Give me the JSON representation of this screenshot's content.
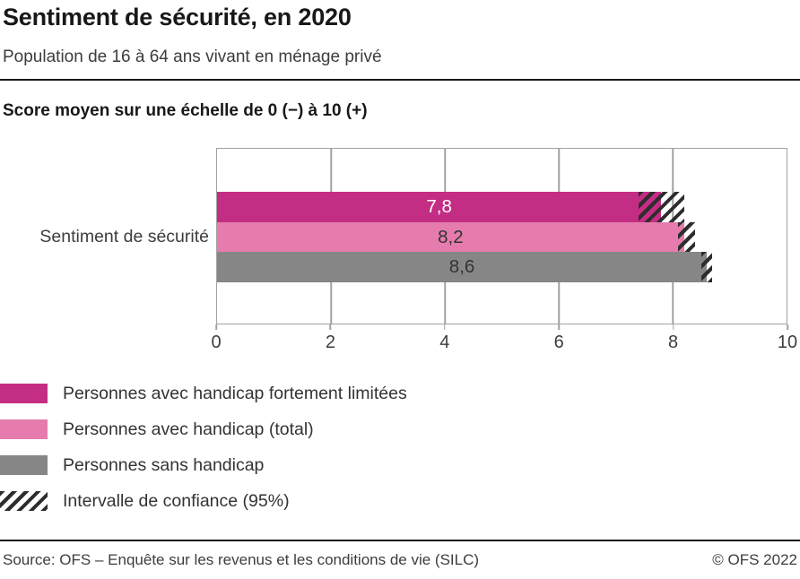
{
  "header": {
    "title": "Sentiment de sécurité, en 2020",
    "subtitle": "Population de 16 à 64 ans vivant en ménage privé"
  },
  "chart_data": {
    "type": "bar",
    "orientation": "horizontal",
    "scale_label": "Score moyen sur une échelle de 0 (−) à 10 (+)",
    "category": "Sentiment de sécurité",
    "xlim": [
      0,
      10
    ],
    "xticks": [
      0,
      2,
      4,
      6,
      8,
      10
    ],
    "grid": "vertical",
    "series": [
      {
        "name": "Personnes avec handicap fortement limitées",
        "value": 7.8,
        "value_label": "7,8",
        "ci": [
          7.4,
          8.2
        ],
        "color": "#c42d84",
        "label_color": "#ffffff"
      },
      {
        "name": "Personnes avec handicap (total)",
        "value": 8.2,
        "value_label": "8,2",
        "ci": [
          8.1,
          8.4
        ],
        "color": "#e57cad",
        "label_color": "#333333"
      },
      {
        "name": "Personnes sans handicap",
        "value": 8.6,
        "value_label": "8,6",
        "ci": [
          8.5,
          8.7
        ],
        "color": "#868686",
        "label_color": "#333333"
      }
    ],
    "confidence_note": "Intervalle de confiance (95%)"
  },
  "legend": {
    "items": [
      {
        "label": "Personnes avec handicap fortement limitées",
        "swatch": "#c42d84",
        "style": "solid"
      },
      {
        "label": "Personnes avec handicap (total)",
        "swatch": "#e57cad",
        "style": "solid"
      },
      {
        "label": "Personnes sans handicap",
        "swatch": "#868686",
        "style": "solid"
      },
      {
        "label": "Intervalle de confiance (95%)",
        "swatch": "hatch",
        "style": "hatch"
      }
    ]
  },
  "footer": {
    "source": "Source: OFS – Enquête sur les revenus et les conditions de vie (SILC)",
    "copyright": "© OFS 2022"
  },
  "colors": {
    "strong_limitation": "#c42d84",
    "disability_total": "#e57cad",
    "no_disability": "#868686",
    "grid": "#a2a2a2",
    "hatch_stripe": "#2d2d2d"
  }
}
